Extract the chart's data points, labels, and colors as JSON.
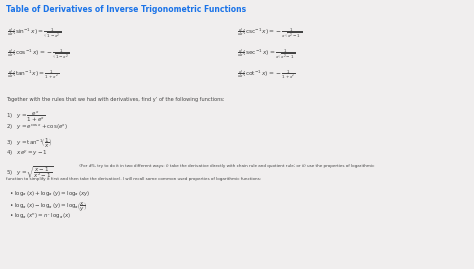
{
  "title": "Table of Derivatives of Inverse Trigonometric Functions",
  "title_color": "#1a73e8",
  "bg_color": "#f0eeee",
  "text_color": "#444444",
  "formulas_left": [
    "$\\frac{d}{dx}(\\sin^{-1}x) = \\frac{1}{\\sqrt{1-x^2}}$",
    "$\\frac{d}{dx}(\\cos^{-1}x) = -\\frac{1}{\\sqrt{1-x^2}}$",
    "$\\frac{d}{dx}(\\tan^{-1}x) = \\frac{1}{1+x^2}$"
  ],
  "formulas_right": [
    "$\\frac{d}{dx}(\\csc^{-1}x) = -\\frac{1}{x\\sqrt{x^2-1}}$",
    "$\\frac{d}{dx}(\\sec^{-1}x) = \\frac{1}{x\\sqrt{x^2-1}}$",
    "$\\frac{d}{dx}(\\cot^{-1}x) = -\\frac{1}{1+x^2}$"
  ],
  "together_text": "Together with the rules that we had with derivatives, find y’ of the following functions:",
  "prob1": "1)   $y = \\dfrac{e^x}{1+e^x}$",
  "prob2": "2)   $y = e^{\\cos x} + \\cos(e^x)$",
  "prob3": "3)   $y = \\tan^{-1}\\!\\left(\\dfrac{1}{x}\\right)$",
  "prob4": "4)   $xe^y = y - 1$",
  "prob5_math": "5)   $y = \\sqrt{\\dfrac{x-1}{x^2-1}}$",
  "prob5_note": " (For #5, try to do it in two different ways: i) take the derivative directly with chain rule and quotient rule; or ii) use the properties of logarithmic",
  "func_text": "function to simplify it first and then take the derivative). I will recall some common used properties of logarithmic functions:",
  "log1": "$\\bullet\\ \\log_a(x) + \\log_a(y) = \\log_a(xy)$",
  "log2": "$\\bullet\\ \\log_a(x) - \\log_a(y) = \\log_a\\!\\left(\\dfrac{x}{y}\\right)$",
  "log3": "$\\bullet\\ \\log_a(x^n) = n \\cdot \\log_a(x)$",
  "title_fs": 5.5,
  "formula_fs": 4.2,
  "text_fs": 3.6,
  "prob_fs": 4.0,
  "note_fs": 3.0,
  "log_fs": 4.0
}
